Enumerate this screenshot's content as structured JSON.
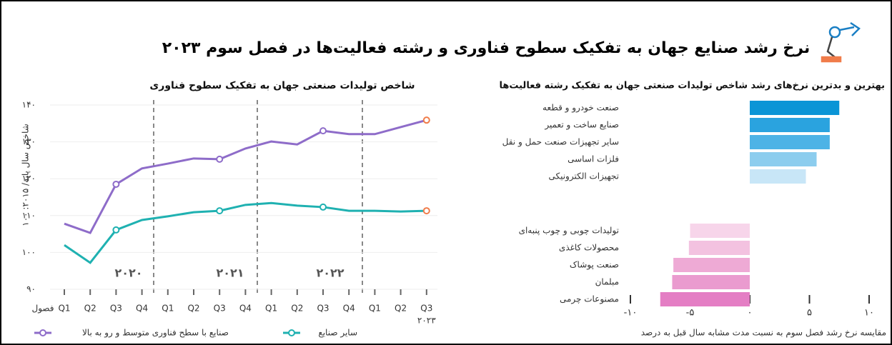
{
  "title": "نرخ رشد صنایع جهان به تفکیک سطوح فناوری و رشته فعالیت‌ها در فصل سوم ۲۰۲۳",
  "chart_data": [
    {
      "type": "line",
      "title": "شاخص تولیدات صنعتی جهان به تفکیک سطوح فناوری",
      "y_label": "شاخص سال پایه/ ۲۰۱۵: ۱۰۰",
      "x_label": "فصول",
      "categories": [
        "Q1",
        "Q2",
        "Q3",
        "Q4",
        "Q1",
        "Q2",
        "Q3",
        "Q4",
        "Q1",
        "Q2",
        "Q3",
        "Q4",
        "Q1",
        "Q2",
        "Q3"
      ],
      "annotations": [
        "۲۰۲۰",
        "۲۰۲۱",
        "۲۰۲۲",
        "۲۰۲۳"
      ],
      "series": [
        {
          "name": "صنایع با سطح فناوری متوسط و رو به بالا",
          "color": "#8e6cc9",
          "values": [
            107.8,
            105.3,
            118.5,
            122.8,
            124.1,
            125.5,
            125.3,
            128.2,
            130.1,
            129.3,
            133.0,
            132.1,
            132.1,
            134.0,
            135.9
          ]
        },
        {
          "name": "سایر صنایع",
          "color": "#1fb1b1",
          "values": [
            102.0,
            97.2,
            106.1,
            108.8,
            109.8,
            110.9,
            111.3,
            112.9,
            113.4,
            112.7,
            112.3,
            111.3,
            111.3,
            111.1,
            111.3
          ]
        }
      ],
      "last_point_color": "#f07c4a",
      "ylim": [
        90,
        140
      ],
      "yticks": [
        {
          "value": 90,
          "label": "۹۰"
        },
        {
          "value": 100,
          "label": "۱۰۰"
        },
        {
          "value": 110,
          "label": "۱۱۰"
        },
        {
          "value": 120,
          "label": "۱۲۰"
        },
        {
          "value": 130,
          "label": "۱۳۰"
        },
        {
          "value": 140,
          "label": "۱۴۰"
        }
      ],
      "grid": true
    },
    {
      "type": "hbar",
      "title": "بهترین و بدترین نرخ‌های رشد شاخص تولیدات صنعتی جهان به تفکیک رشته فعالیت‌ها",
      "x_label": "مقایسه نرخ رشد فصل سوم به نسبت مدت مشابه سال قبل به درصد",
      "categories": [
        "صنعت خودرو و قطعه",
        "صنایع ساخت و تعمیر",
        "سایر تجهیزات صنعت حمل و نقل",
        "فلزات اساسی",
        "تجهیزات الکترونیکی",
        "تولیدات چوبی و چوب پنبه‌ای",
        "محصولات کاغذی",
        "صنعت پوشاک",
        "مبلمان",
        "مصنوعات چرمی"
      ],
      "values": [
        7.5,
        6.7,
        6.7,
        5.6,
        4.7,
        -5.0,
        -5.1,
        -6.4,
        -6.5,
        -7.5
      ],
      "colors": [
        "#0b95d6",
        "#2aa3df",
        "#4db3e6",
        "#8ccdee",
        "#c8e6f7",
        "#f7d5ea",
        "#f3c2e0",
        "#eeaad5",
        "#ea9bcf",
        "#e47ec4"
      ],
      "xlim": [
        -10,
        10
      ],
      "xticks": [
        {
          "value": -10,
          "label": "-۱۰"
        },
        {
          "value": -5,
          "label": "-۵"
        },
        {
          "value": 0,
          "label": "۰"
        },
        {
          "value": 5,
          "label": "۵"
        },
        {
          "value": 10,
          "label": "۱۰"
        }
      ]
    }
  ]
}
